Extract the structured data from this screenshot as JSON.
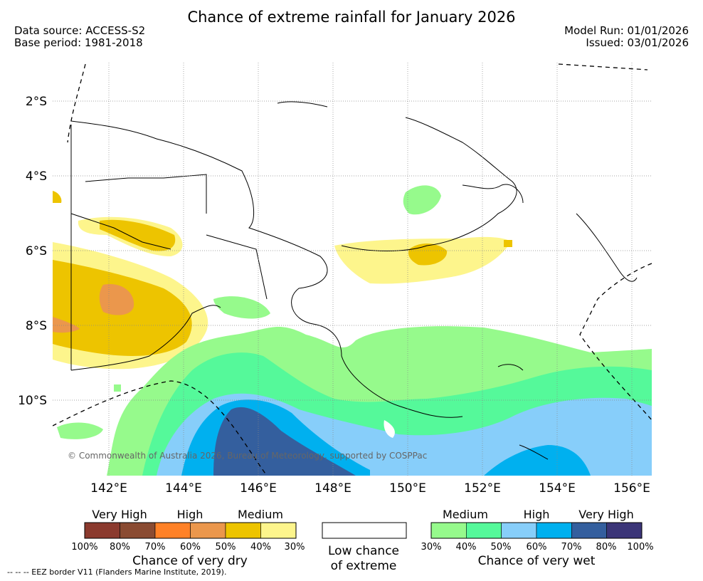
{
  "title": "Chance of extreme rainfall for January 2026",
  "header": {
    "data_source": "Data source: ACCESS-S2",
    "base_period": "Base period: 1981-2018",
    "model_run": "Model Run: 01/01/2026",
    "issued": "Issued: 03/01/2026"
  },
  "map": {
    "lat_labels": [
      "2°S",
      "4°S",
      "6°S",
      "8°S",
      "10°S"
    ],
    "lon_labels": [
      "142°E",
      "144°E",
      "146°E",
      "148°E",
      "150°E",
      "152°E",
      "154°E",
      "156°E"
    ],
    "credit": "© Commonwealth of Australia 2026, Bureau of Meteorology, supported by COSPPac"
  },
  "legend": {
    "dry": {
      "category_labels": [
        "Very High",
        "High",
        "Medium"
      ],
      "colors": [
        "#8b3a2e",
        "#8a4b32",
        "#ff8127",
        "#eb974c",
        "#edc400",
        "#fdf58c"
      ],
      "ticks": [
        "100%",
        "80%",
        "70%",
        "60%",
        "50%",
        "40%",
        "30%"
      ],
      "title": "Chance of very dry"
    },
    "neutral": {
      "color": "#ffffff",
      "title_line1": "Low chance",
      "title_line2": "of extreme"
    },
    "wet": {
      "category_labels": [
        "Medium",
        "High",
        "Very High"
      ],
      "colors": [
        "#96fa8c",
        "#55f99a",
        "#87cefa",
        "#00b0ef",
        "#345f9e",
        "#3b3578"
      ],
      "ticks": [
        "30%",
        "40%",
        "50%",
        "60%",
        "70%",
        "80%",
        "100%"
      ],
      "title": "Chance of very wet"
    }
  },
  "eez_note": "-- -- -- EEZ border V11 (Flanders Marine Institute, 2019)."
}
